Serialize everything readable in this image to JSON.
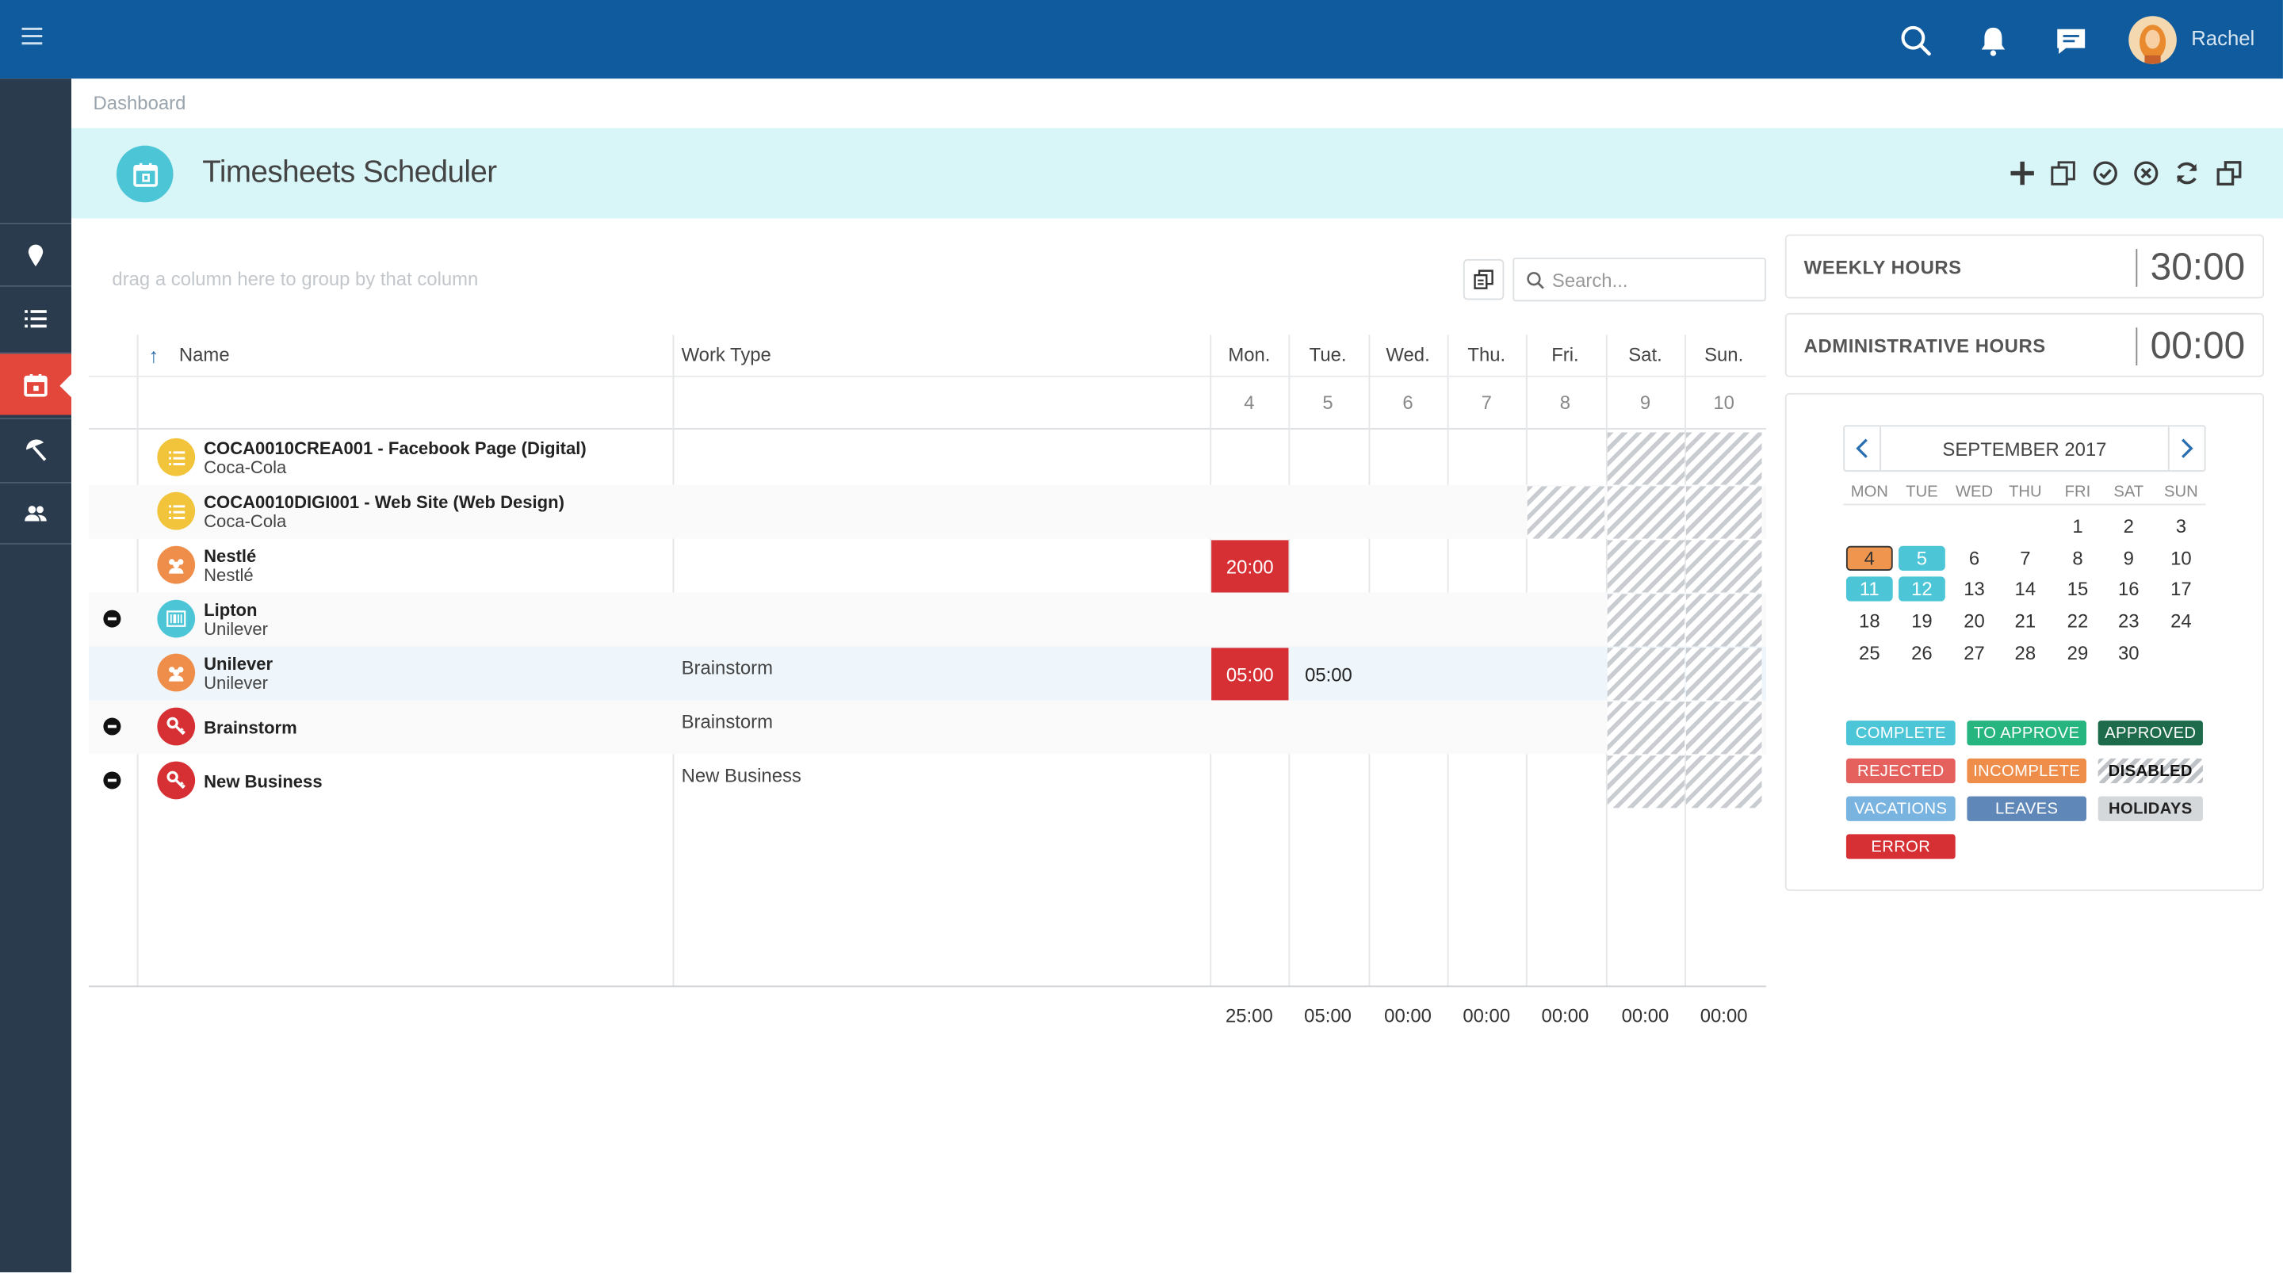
{
  "topbar": {
    "user_name": "Rachel",
    "icons": [
      "menu-icon",
      "search-icon",
      "bell-icon",
      "chat-icon",
      "avatar"
    ]
  },
  "breadcrumb": "Dashboard",
  "page_title": "Timesheets Scheduler",
  "toolbar_icons": [
    "plus-icon",
    "copy-icon",
    "check-circle-icon",
    "cancel-circle-icon",
    "refresh-icon",
    "windows-icon"
  ],
  "grid": {
    "group_hint": "drag a column here to group by that column",
    "search_placeholder": "Search...",
    "columns": {
      "name": "Name",
      "work_type": "Work Type"
    },
    "days": [
      {
        "label": "Mon.",
        "num": "4"
      },
      {
        "label": "Tue.",
        "num": "5"
      },
      {
        "label": "Wed.",
        "num": "6"
      },
      {
        "label": "Thu.",
        "num": "7"
      },
      {
        "label": "Fri.",
        "num": "8"
      },
      {
        "label": "Sat.",
        "num": "9"
      },
      {
        "label": "Sun.",
        "num": "10"
      }
    ],
    "rows": [
      {
        "name": "COCA0010CREA001 - Facebook Page (Digital)",
        "sub": "Coca-Cola",
        "work_type": "",
        "icon": "list-icon",
        "color": "#f2c43c",
        "collapse": false,
        "values": [
          "",
          "",
          "",
          "",
          "",
          "",
          ""
        ]
      },
      {
        "name": "COCA0010DIGI001 - Web Site (Web Design)",
        "sub": "Coca-Cola",
        "work_type": "",
        "icon": "list-icon",
        "color": "#f2c43c",
        "collapse": false,
        "values": [
          "",
          "",
          "",
          "",
          "",
          "",
          ""
        ]
      },
      {
        "name": "Nestlé",
        "sub": "Nestlé",
        "work_type": "",
        "icon": "group-icon",
        "color": "#ee8e4a",
        "collapse": false,
        "values": [
          "20:00",
          "",
          "",
          "",
          "",
          "",
          ""
        ]
      },
      {
        "name": "Lipton",
        "sub": "Unilever",
        "work_type": "",
        "icon": "barcode-icon",
        "color": "#4cc6d7",
        "collapse": true,
        "values": [
          "",
          "",
          "",
          "",
          "",
          "",
          ""
        ]
      },
      {
        "name": "Unilever",
        "sub": "Unilever",
        "work_type": "Brainstorm",
        "icon": "group-icon",
        "color": "#ee8e4a",
        "collapse": false,
        "values": [
          "05:00",
          "05:00",
          "",
          "",
          "",
          "",
          ""
        ]
      },
      {
        "name": "Brainstorm",
        "sub": "",
        "work_type": "Brainstorm",
        "icon": "key-icon",
        "color": "#d62f34",
        "collapse": true,
        "values": [
          "",
          "",
          "",
          "",
          "",
          "",
          ""
        ]
      },
      {
        "name": "New Business",
        "sub": "",
        "work_type": "New Business",
        "icon": "key-icon",
        "color": "#d62f34",
        "collapse": true,
        "values": [
          "",
          "",
          "",
          "",
          "",
          "",
          ""
        ]
      }
    ],
    "totals": [
      "25:00",
      "05:00",
      "00:00",
      "00:00",
      "00:00",
      "00:00",
      "00:00"
    ]
  },
  "summary": {
    "weekly_label": "WEEKLY HOURS",
    "weekly_value": "30:00",
    "admin_label": "ADMINISTRATIVE HOURS",
    "admin_value": "00:00"
  },
  "calendar": {
    "month": "SEPTEMBER 2017",
    "dow": [
      "MON",
      "TUE",
      "WED",
      "THU",
      "FRI",
      "SAT",
      "SUN"
    ],
    "weeks": [
      [
        "",
        "",
        "",
        "",
        "1",
        "2",
        "3"
      ],
      [
        "4",
        "5",
        "6",
        "7",
        "8",
        "9",
        "10"
      ],
      [
        "11",
        "12",
        "13",
        "14",
        "15",
        "16",
        "17"
      ],
      [
        "18",
        "19",
        "20",
        "21",
        "22",
        "23",
        "24"
      ],
      [
        "25",
        "26",
        "27",
        "28",
        "29",
        "30",
        ""
      ]
    ],
    "highlights": {
      "4": "#f0954e",
      "5": "#4cc6d7",
      "11": "#4cc6d7",
      "12": "#4cc6d7"
    }
  },
  "legend": [
    {
      "label": "COMPLETE",
      "color": "#4cc6d7"
    },
    {
      "label": "TO APPROVE",
      "color": "#26b57f"
    },
    {
      "label": "APPROVED",
      "color": "#1d6b4a"
    },
    {
      "label": "REJECTED",
      "color": "#e4615d"
    },
    {
      "label": "INCOMPLETE",
      "color": "#ee8e4a"
    },
    {
      "label": "DISABLED",
      "color": "hatch"
    },
    {
      "label": "VACATIONS",
      "color": "#79b4e0"
    },
    {
      "label": "LEAVES",
      "color": "#5f87b8"
    },
    {
      "label": "HOLIDAYS",
      "color": "#d5d8db"
    },
    {
      "label": "ERROR",
      "color": "#d62f34"
    }
  ]
}
